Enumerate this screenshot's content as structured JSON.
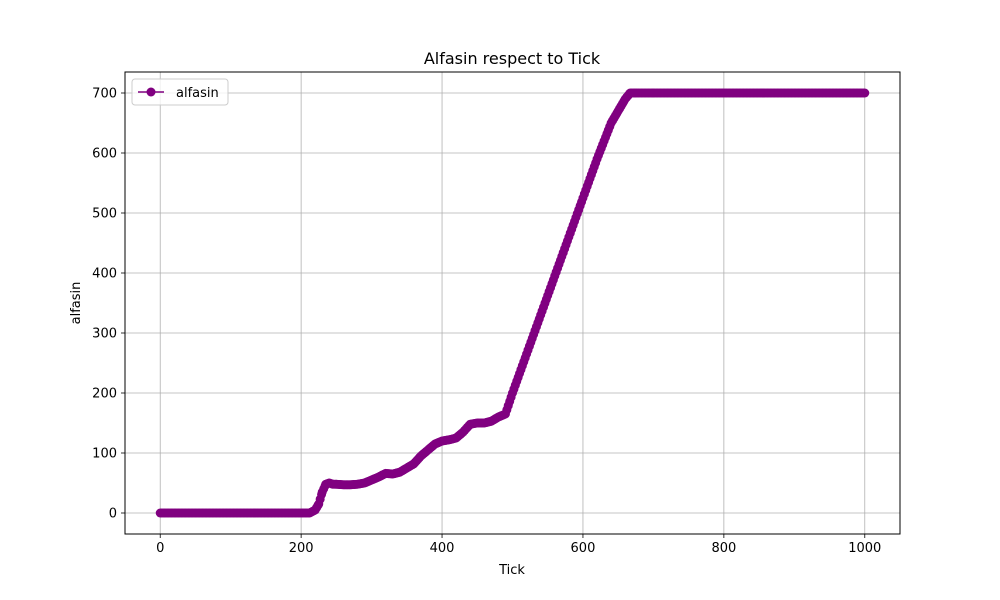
{
  "chart_data": {
    "type": "line",
    "title": "Alfasin respect to Tick",
    "xlabel": "Tick",
    "ylabel": "alfasin",
    "xlim": [
      -50,
      1050
    ],
    "ylim": [
      -35,
      735
    ],
    "xticks": [
      0,
      200,
      400,
      600,
      800,
      1000
    ],
    "yticks": [
      0,
      100,
      200,
      300,
      400,
      500,
      600,
      700
    ],
    "grid": true,
    "legend_position": "top-left",
    "series": [
      {
        "name": "alfasin",
        "color": "#800080",
        "marker": "circle",
        "x": [
          0,
          100,
          200,
          212,
          220,
          225,
          230,
          235,
          240,
          245,
          250,
          260,
          270,
          280,
          290,
          300,
          310,
          320,
          330,
          340,
          350,
          360,
          370,
          380,
          390,
          400,
          410,
          420,
          430,
          440,
          450,
          460,
          470,
          480,
          490,
          500,
          520,
          540,
          560,
          580,
          600,
          620,
          640,
          660,
          667,
          700,
          800,
          900,
          1000
        ],
        "y": [
          0,
          0,
          0,
          0,
          5,
          15,
          35,
          48,
          50,
          48,
          48,
          47,
          47,
          48,
          50,
          55,
          60,
          66,
          65,
          68,
          75,
          82,
          95,
          105,
          115,
          120,
          122,
          125,
          135,
          148,
          150,
          150,
          153,
          160,
          165,
          200,
          265,
          330,
          395,
          460,
          525,
          590,
          650,
          690,
          700,
          700,
          700,
          700,
          700
        ]
      }
    ]
  }
}
